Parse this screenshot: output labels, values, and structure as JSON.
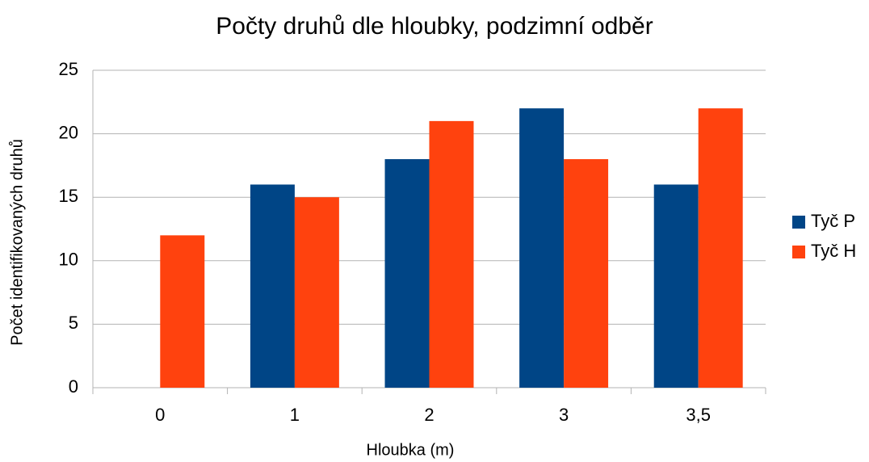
{
  "chart_data": {
    "type": "bar",
    "title": "Počty druhů dle hloubky, podzimní odběr",
    "x_label": "Hloubka (m)",
    "y_label": "Počet identifikovaných druhů",
    "categories": [
      "0",
      "1",
      "2",
      "3",
      "3,5"
    ],
    "series": [
      {
        "name": "Tyč P",
        "color": "#004586",
        "values": [
          0,
          16,
          18,
          22,
          16
        ]
      },
      {
        "name": "Tyč H",
        "color": "#ff420e",
        "values": [
          12,
          15,
          21,
          18,
          22
        ]
      }
    ],
    "ylim": [
      0,
      25
    ],
    "yticks": [
      0,
      5,
      10,
      15,
      20,
      25
    ],
    "grid": true,
    "legend": "right"
  }
}
